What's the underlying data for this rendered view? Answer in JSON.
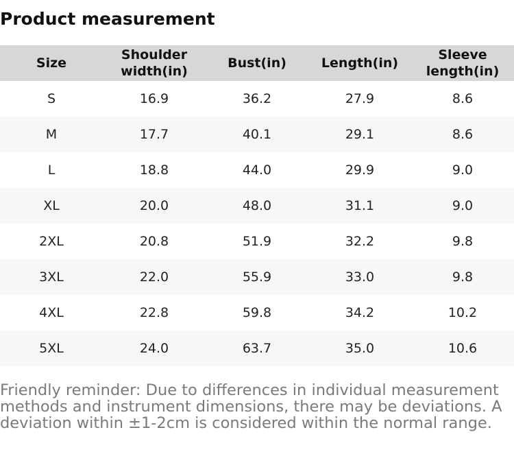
{
  "title": "Product measurement",
  "table": {
    "headers": [
      "Size",
      "Shoulder width(in)",
      "Bust(in)",
      "Length(in)",
      "Sleeve length(in)"
    ],
    "rows": [
      [
        "S",
        "16.9",
        "36.2",
        "27.9",
        "8.6"
      ],
      [
        "M",
        "17.7",
        "40.1",
        "29.1",
        "8.6"
      ],
      [
        "L",
        "18.8",
        "44.0",
        "29.9",
        "9.0"
      ],
      [
        "XL",
        "20.0",
        "48.0",
        "31.1",
        "9.0"
      ],
      [
        "2XL",
        "20.8",
        "51.9",
        "32.2",
        "9.8"
      ],
      [
        "3XL",
        "22.0",
        "55.9",
        "33.0",
        "9.8"
      ],
      [
        "4XL",
        "22.8",
        "59.8",
        "34.2",
        "10.2"
      ],
      [
        "5XL",
        "24.0",
        "63.7",
        "35.0",
        "10.6"
      ]
    ]
  },
  "reminder": "Friendly reminder: Due to differences in individual measurement methods and instrument dimensions, there may be deviations. A deviation within ±1-2cm is considered within the normal range.",
  "colors": {
    "header_background": "#d7d7d7",
    "row_stripe": "#f7f7f7",
    "reminder_text": "#7a7a7a"
  }
}
